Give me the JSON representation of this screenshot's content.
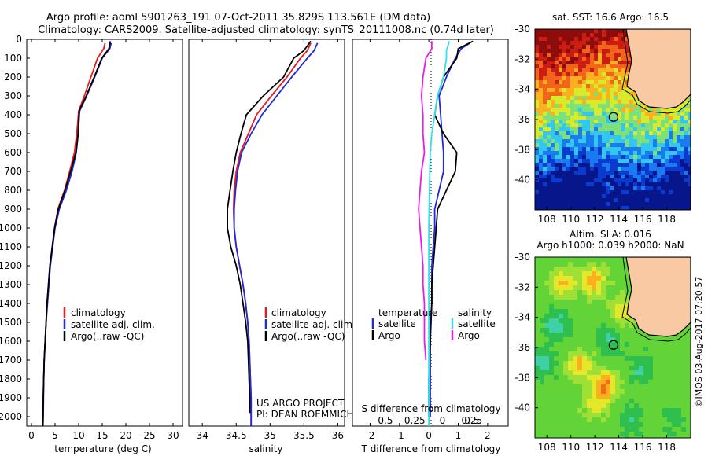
{
  "title": {
    "line1": "Argo profile: aoml 5901263_191 07-Oct-2011 35.829S 113.561E (DM data)",
    "line2": "Climatology: CARS2009. Satellite-adjusted climatology: synTS_20111008.nc (0.74d later)"
  },
  "credits": {
    "project": "US ARGO PROJECT",
    "pi": "PI: DEAN ROEMMICH",
    "copyright": "©IMOS 03-Aug-2017 07:20:57"
  },
  "colors": {
    "climatology": "#e8191b",
    "satellite": "#1f2bd6",
    "argo": "#000000",
    "salinity_satellite": "#33e0e8",
    "salinity_argo": "#e81ee8",
    "land": "#f9c9a4"
  },
  "chart_data": [
    {
      "type": "line",
      "panel": "temperature",
      "xlabel": "temperature (deg C)",
      "ylim": [
        2050,
        0
      ],
      "xlim": [
        -1,
        32
      ],
      "xticks": [
        0,
        5,
        10,
        15,
        20,
        25,
        30
      ],
      "yticks": [
        0,
        100,
        200,
        300,
        400,
        500,
        600,
        700,
        800,
        900,
        1000,
        1100,
        1200,
        1300,
        1400,
        1500,
        1600,
        1700,
        1800,
        1900,
        2000
      ],
      "legend": [
        "climatology",
        "satellite-adj. clim.",
        "Argo(..raw -QC)"
      ],
      "series": [
        {
          "name": "climatology",
          "color": "#e8191b",
          "x": [
            15.6,
            15.3,
            14.0,
            12.6,
            11.2,
            10.0,
            9.6,
            9.1,
            8.1,
            7.0,
            5.6,
            4.9,
            4.4,
            3.9,
            3.6,
            3.3,
            3.1,
            2.9,
            2.7,
            2.6,
            2.5,
            2.45,
            2.4
          ],
          "y": [
            20,
            50,
            100,
            200,
            300,
            380,
            500,
            600,
            700,
            800,
            900,
            1000,
            1100,
            1200,
            1300,
            1400,
            1500,
            1600,
            1700,
            1800,
            1900,
            2000,
            2050
          ]
        },
        {
          "name": "satellite-adj. clim.",
          "color": "#1f2bd6",
          "x": [
            16.9,
            16.6,
            15.0,
            13.4,
            11.7,
            10.2,
            9.9,
            9.5,
            8.6,
            7.4,
            5.9,
            5.0,
            4.5,
            4.0,
            3.7,
            3.4,
            3.1,
            2.9,
            2.7,
            2.6,
            2.55,
            2.5,
            2.45
          ],
          "y": [
            20,
            50,
            100,
            200,
            300,
            380,
            500,
            600,
            700,
            800,
            900,
            1000,
            1100,
            1200,
            1300,
            1400,
            1500,
            1600,
            1700,
            1800,
            1900,
            2000,
            2050
          ]
        },
        {
          "name": "Argo(..raw -QC)",
          "color": "#000000",
          "x": [
            16.7,
            16.4,
            14.9,
            13.3,
            11.6,
            10.1,
            9.9,
            9.4,
            8.3,
            7.1,
            5.7,
            4.9,
            4.4,
            3.9,
            3.6,
            3.3,
            3.1,
            2.9,
            2.7,
            2.6,
            2.5,
            2.45,
            2.4
          ],
          "y": [
            10,
            50,
            100,
            200,
            300,
            380,
            500,
            600,
            700,
            800,
            900,
            1000,
            1100,
            1200,
            1300,
            1400,
            1500,
            1600,
            1700,
            1800,
            1900,
            2000,
            2050
          ]
        }
      ]
    },
    {
      "type": "line",
      "panel": "salinity",
      "xlabel": "salinity",
      "ylim": [
        2050,
        0
      ],
      "xlim": [
        33.8,
        36.1
      ],
      "xticks": [
        34,
        34.5,
        35,
        35.5,
        36
      ],
      "legend": [
        "climatology",
        "satellite-adj. clim.",
        "Argo(..raw -QC)"
      ],
      "series": [
        {
          "name": "climatology",
          "color": "#e8191b",
          "x": [
            35.6,
            35.55,
            35.45,
            35.25,
            35.02,
            34.8,
            34.68,
            34.56,
            34.5,
            34.47,
            34.46,
            34.47,
            34.5,
            34.55,
            34.6,
            34.64,
            34.67,
            34.69,
            34.7,
            34.71,
            34.72,
            34.72
          ],
          "y": [
            20,
            60,
            100,
            200,
            300,
            400,
            500,
            600,
            700,
            800,
            900,
            1000,
            1100,
            1200,
            1300,
            1400,
            1500,
            1600,
            1700,
            1800,
            1900,
            2050
          ]
        },
        {
          "name": "satellite-adj. clim.",
          "color": "#1f2bd6",
          "x": [
            35.7,
            35.65,
            35.55,
            35.32,
            35.1,
            34.88,
            34.72,
            34.58,
            34.52,
            34.49,
            34.47,
            34.47,
            34.5,
            34.55,
            34.6,
            34.64,
            34.67,
            34.69,
            34.7,
            34.71,
            34.72,
            34.72
          ],
          "y": [
            20,
            60,
            100,
            200,
            300,
            400,
            500,
            600,
            700,
            800,
            900,
            1000,
            1100,
            1200,
            1300,
            1400,
            1500,
            1600,
            1700,
            1800,
            1900,
            2050
          ]
        },
        {
          "name": "Argo(..raw -QC)",
          "color": "#000000",
          "x": [
            35.6,
            35.5,
            35.35,
            35.2,
            34.9,
            34.65,
            34.57,
            34.5,
            34.45,
            34.41,
            34.37,
            34.37,
            34.42,
            34.5,
            34.56,
            34.6,
            34.64,
            34.67,
            34.68,
            34.69,
            34.7,
            34.7
          ],
          "y": [
            10,
            60,
            100,
            200,
            300,
            400,
            500,
            600,
            700,
            800,
            900,
            1000,
            1100,
            1200,
            1300,
            1400,
            1500,
            1600,
            1700,
            1800,
            1900,
            1980
          ]
        }
      ]
    },
    {
      "type": "line",
      "panel": "difference",
      "xlabel": "T difference from climatology",
      "xlabel_top": "S difference from climatology",
      "ylim": [
        2050,
        0
      ],
      "xlim": [
        -2.6,
        2.7
      ],
      "xticks": [
        -2,
        -1,
        0,
        1,
        2
      ],
      "xtick_labels_T": [
        "-2",
        "-1",
        "0",
        "1",
        "2"
      ],
      "xtick_labels_S": [
        "-0.5",
        "-0.25",
        "0",
        "0.25",
        "0.5"
      ],
      "legend_left": {
        "title": "temperature",
        "items": [
          "satellite",
          "Argo"
        ]
      },
      "legend_right": {
        "title": "salinity",
        "items": [
          "satellite",
          "Argo"
        ]
      },
      "series": [
        {
          "name": "temperature satellite",
          "color": "#1f2bd6",
          "x": [
            1.4,
            1.1,
            0.9,
            0.6,
            0.35,
            0.4,
            0.45,
            0.5,
            0.5,
            0.35,
            0.2,
            0.2,
            0.15,
            0.1,
            0.1,
            0.1,
            0.05,
            0.05,
            0.05,
            0.05,
            0.05
          ],
          "y": [
            20,
            50,
            100,
            200,
            300,
            400,
            500,
            600,
            700,
            800,
            900,
            1000,
            1100,
            1200,
            1300,
            1400,
            1500,
            1600,
            1700,
            1800,
            2000
          ]
        },
        {
          "name": "temperature Argo",
          "color": "#000000",
          "x": [
            1.5,
            1.0,
            0.95,
            0.5,
            0.3,
            0.2,
            0.5,
            0.95,
            0.9,
            0.6,
            0.3,
            0.25,
            0.2,
            0.15,
            0.1,
            0.1,
            0.05,
            0.0,
            0.0
          ],
          "y": [
            10,
            50,
            100,
            200,
            300,
            400,
            500,
            600,
            700,
            800,
            900,
            1000,
            1100,
            1200,
            1300,
            1400,
            1600,
            1800,
            2000
          ]
        },
        {
          "name": "salinity satellite",
          "color": "#33e0e8",
          "x": [
            0.7,
            0.6,
            0.6,
            0.5,
            0.3,
            0.2,
            0.1,
            0.05,
            0.03,
            0.02,
            0.01,
            0.0,
            0.0,
            0.0,
            0.0,
            0.0,
            0.0,
            0.0,
            0.0,
            0.0
          ],
          "y": [
            10,
            60,
            100,
            200,
            300,
            400,
            500,
            600,
            700,
            800,
            900,
            1000,
            1100,
            1200,
            1300,
            1400,
            1500,
            1600,
            1800,
            2050
          ]
        },
        {
          "name": "salinity Argo",
          "color": "#e81ee8",
          "x": [
            0.1,
            0.1,
            -0.1,
            -0.2,
            -0.25,
            -0.2,
            -0.2,
            -0.15,
            -0.25,
            -0.3,
            -0.35,
            -0.3,
            -0.25,
            -0.2,
            -0.2,
            -0.15,
            -0.15,
            -0.15,
            -0.1
          ],
          "y": [
            10,
            50,
            100,
            200,
            300,
            400,
            500,
            600,
            700,
            800,
            900,
            1000,
            1100,
            1200,
            1300,
            1400,
            1500,
            1600,
            1700
          ]
        }
      ]
    },
    {
      "type": "heatmap",
      "panel": "sst_map",
      "title": "sat. SST: 16.6 Argo: 16.5",
      "xlim": [
        107,
        120
      ],
      "ylim": [
        -42,
        -30
      ],
      "xticks": [
        108,
        110,
        112,
        114,
        116,
        118
      ],
      "yticks": [
        -30,
        -32,
        -34,
        -36,
        -38,
        -40
      ],
      "profile_location": {
        "lon": 113.561,
        "lat": -35.829
      }
    },
    {
      "type": "heatmap",
      "panel": "sla_map",
      "title_line1": "Altim. SLA: 0.016",
      "title_line2": "Argo h1000: 0.039 h2000: NaN",
      "xlim": [
        107,
        120
      ],
      "ylim": [
        -42,
        -30
      ],
      "xticks": [
        108,
        110,
        112,
        114,
        116,
        118
      ],
      "yticks": [
        -30,
        -32,
        -34,
        -36,
        -38,
        -40
      ],
      "profile_location": {
        "lon": 113.561,
        "lat": -35.829
      }
    }
  ]
}
